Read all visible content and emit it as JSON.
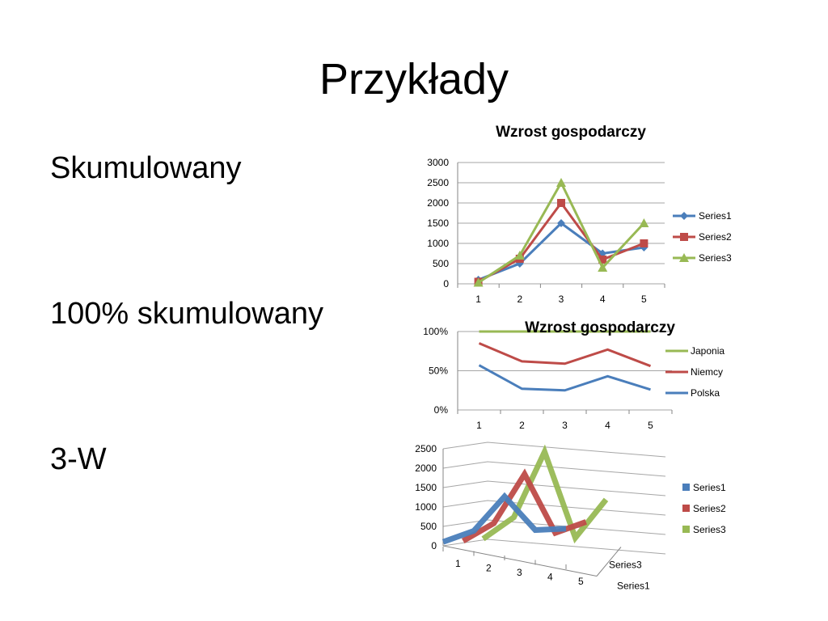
{
  "slide": {
    "title": "Przykłady",
    "bullets": [
      "Skumulowany",
      "100% skumulowany",
      "3-W"
    ]
  },
  "colors": {
    "blue": "#4a7ebb",
    "red": "#be4b48",
    "green": "#98b954",
    "gridline": "#a6a6a6"
  },
  "chart_data": [
    {
      "type": "line",
      "title": "Wzrost gospodarczy",
      "categories": [
        "1",
        "2",
        "3",
        "4",
        "5"
      ],
      "series": [
        {
          "name": "Series1",
          "color": "#4a7ebb",
          "marker": "diamond",
          "values": [
            100,
            500,
            1500,
            750,
            900
          ]
        },
        {
          "name": "Series2",
          "color": "#be4b48",
          "marker": "square",
          "values": [
            50,
            620,
            2000,
            600,
            1000
          ]
        },
        {
          "name": "Series3",
          "color": "#98b954",
          "marker": "triangle",
          "values": [
            30,
            700,
            2500,
            400,
            1500
          ]
        }
      ],
      "y_ticks": [
        "0",
        "500",
        "1000",
        "1500",
        "2000",
        "2500",
        "3000"
      ],
      "ylim": [
        0,
        3000
      ],
      "grid": true,
      "legend": "right"
    },
    {
      "type": "line",
      "stacking": "100%",
      "title": "Wzrost gospodarczy",
      "categories": [
        "1",
        "2",
        "3",
        "4",
        "5"
      ],
      "series": [
        {
          "name": "Japonia",
          "color": "#98b954",
          "values": [
            100,
            100,
            100,
            100,
            100
          ]
        },
        {
          "name": "Niemcy",
          "color": "#be4b48",
          "values": [
            85,
            62,
            59,
            77,
            56
          ]
        },
        {
          "name": "Polska",
          "color": "#4a7ebb",
          "values": [
            57,
            27,
            25,
            43,
            26
          ]
        }
      ],
      "y_ticks": [
        "0%",
        "50%",
        "100%"
      ],
      "ylim": [
        0,
        100
      ],
      "grid": true,
      "legend": "right"
    },
    {
      "type": "line",
      "projection": "3d",
      "categories": [
        "1",
        "2",
        "3",
        "4",
        "5"
      ],
      "depth_labels": [
        "Series1",
        "Series3"
      ],
      "series": [
        {
          "name": "Series1",
          "color": "#4a7ebb",
          "values": [
            100,
            500,
            1500,
            750,
            900
          ]
        },
        {
          "name": "Series2",
          "color": "#be4b48",
          "values": [
            50,
            620,
            2000,
            600,
            1000
          ]
        },
        {
          "name": "Series3",
          "color": "#98b954",
          "values": [
            30,
            700,
            2500,
            400,
            1500
          ]
        }
      ],
      "y_ticks": [
        "0",
        "500",
        "1000",
        "1500",
        "2000",
        "2500"
      ],
      "ylim": [
        0,
        2500
      ],
      "grid": true,
      "legend": "right"
    }
  ]
}
